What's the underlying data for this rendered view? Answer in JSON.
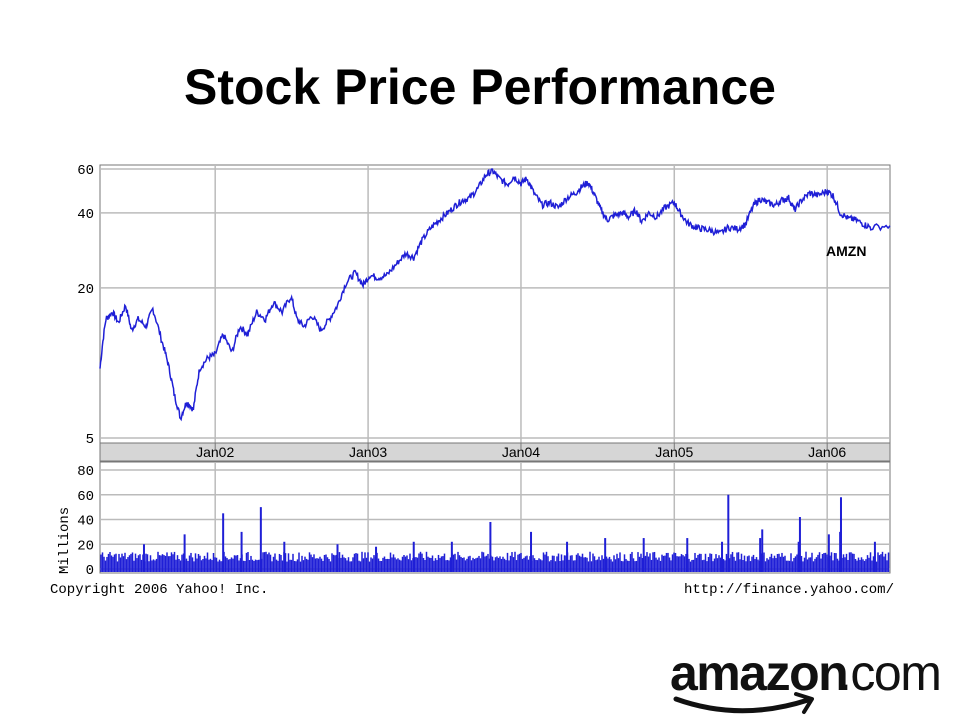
{
  "page": {
    "title": "Stock Price Performance"
  },
  "chart_data": [
    {
      "type": "line",
      "ticker_label": "AMZN",
      "y_scale": "log",
      "ylim": [
        5,
        60
      ],
      "y_ticks": [
        5,
        20,
        40,
        60
      ],
      "x_range": [
        "2001-04-01",
        "2006-05-31"
      ],
      "x_ticks": [
        {
          "date": "2002-01-01",
          "label": "Jan02"
        },
        {
          "date": "2003-01-01",
          "label": "Jan03"
        },
        {
          "date": "2004-01-01",
          "label": "Jan04"
        },
        {
          "date": "2005-01-01",
          "label": "Jan05"
        },
        {
          "date": "2006-01-01",
          "label": "Jan06"
        }
      ],
      "grid": true,
      "series": [
        {
          "color": "#1f1fd6",
          "points": [
            [
              "2001-04-01",
              9.5
            ],
            [
              "2001-04-15",
              15.0
            ],
            [
              "2001-05-01",
              16.0
            ],
            [
              "2001-05-15",
              14.5
            ],
            [
              "2001-06-01",
              17.0
            ],
            [
              "2001-06-15",
              13.5
            ],
            [
              "2001-07-01",
              15.0
            ],
            [
              "2001-07-20",
              14.0
            ],
            [
              "2001-08-05",
              16.5
            ],
            [
              "2001-08-25",
              12.5
            ],
            [
              "2001-09-10",
              10.0
            ],
            [
              "2001-09-25",
              7.5
            ],
            [
              "2001-10-10",
              6.0
            ],
            [
              "2001-10-25",
              7.0
            ],
            [
              "2001-11-10",
              6.5
            ],
            [
              "2001-11-25",
              9.5
            ],
            [
              "2001-12-15",
              10.5
            ],
            [
              "2002-01-01",
              10.8
            ],
            [
              "2002-01-20",
              13.0
            ],
            [
              "2002-02-10",
              11.0
            ],
            [
              "2002-03-01",
              14.0
            ],
            [
              "2002-03-20",
              13.0
            ],
            [
              "2002-04-10",
              16.0
            ],
            [
              "2002-05-01",
              15.0
            ],
            [
              "2002-05-20",
              17.5
            ],
            [
              "2002-06-10",
              16.0
            ],
            [
              "2002-07-01",
              18.5
            ],
            [
              "2002-07-15",
              15.0
            ],
            [
              "2002-08-01",
              14.0
            ],
            [
              "2002-08-20",
              15.5
            ],
            [
              "2002-09-10",
              13.5
            ],
            [
              "2002-10-01",
              15.0
            ],
            [
              "2002-10-20",
              17.0
            ],
            [
              "2002-11-10",
              21.0
            ],
            [
              "2002-12-01",
              23.0
            ],
            [
              "2002-12-20",
              20.5
            ],
            [
              "2003-01-05",
              22.5
            ],
            [
              "2003-01-25",
              22.0
            ],
            [
              "2003-02-15",
              22.5
            ],
            [
              "2003-03-10",
              25.0
            ],
            [
              "2003-04-01",
              27.5
            ],
            [
              "2003-04-20",
              26.5
            ],
            [
              "2003-05-10",
              31.0
            ],
            [
              "2003-06-01",
              35.0
            ],
            [
              "2003-06-20",
              37.5
            ],
            [
              "2003-07-10",
              40.0
            ],
            [
              "2003-07-30",
              43.0
            ],
            [
              "2003-08-15",
              45.0
            ],
            [
              "2003-09-01",
              46.0
            ],
            [
              "2003-09-20",
              50.0
            ],
            [
              "2003-10-10",
              57.0
            ],
            [
              "2003-10-25",
              59.0
            ],
            [
              "2003-11-10",
              55.0
            ],
            [
              "2003-11-30",
              52.0
            ],
            [
              "2003-12-15",
              56.0
            ],
            [
              "2004-01-01",
              52.5
            ],
            [
              "2004-01-15",
              55.0
            ],
            [
              "2004-02-01",
              48.0
            ],
            [
              "2004-02-20",
              43.0
            ],
            [
              "2004-03-10",
              44.0
            ],
            [
              "2004-03-30",
              42.0
            ],
            [
              "2004-04-20",
              46.0
            ],
            [
              "2004-05-10",
              48.0
            ],
            [
              "2004-05-25",
              51.0
            ],
            [
              "2004-06-10",
              53.0
            ],
            [
              "2004-06-25",
              47.0
            ],
            [
              "2004-07-10",
              41.0
            ],
            [
              "2004-07-25",
              37.5
            ],
            [
              "2004-08-10",
              39.0
            ],
            [
              "2004-08-30",
              40.0
            ],
            [
              "2004-09-15",
              38.5
            ],
            [
              "2004-10-01",
              41.0
            ],
            [
              "2004-10-15",
              37.0
            ],
            [
              "2004-11-01",
              40.0
            ],
            [
              "2004-11-20",
              38.5
            ],
            [
              "2004-12-10",
              42.0
            ],
            [
              "2005-01-01",
              44.0
            ],
            [
              "2005-01-15",
              40.0
            ],
            [
              "2005-02-01",
              36.5
            ],
            [
              "2005-02-20",
              35.0
            ],
            [
              "2005-03-10",
              34.5
            ],
            [
              "2005-03-30",
              34.0
            ],
            [
              "2005-04-20",
              33.0
            ],
            [
              "2005-05-10",
              35.0
            ],
            [
              "2005-06-01",
              34.5
            ],
            [
              "2005-06-20",
              36.0
            ],
            [
              "2005-07-10",
              43.0
            ],
            [
              "2005-07-25",
              45.5
            ],
            [
              "2005-08-10",
              44.0
            ],
            [
              "2005-08-30",
              43.0
            ],
            [
              "2005-09-15",
              45.0
            ],
            [
              "2005-10-01",
              46.0
            ],
            [
              "2005-10-15",
              41.0
            ],
            [
              "2005-11-01",
              45.0
            ],
            [
              "2005-11-20",
              48.0
            ],
            [
              "2005-12-10",
              47.0
            ],
            [
              "2006-01-01",
              49.0
            ],
            [
              "2006-01-15",
              47.0
            ],
            [
              "2006-02-01",
              40.0
            ],
            [
              "2006-02-20",
              38.0
            ],
            [
              "2006-03-10",
              37.5
            ],
            [
              "2006-03-30",
              36.0
            ],
            [
              "2006-04-15",
              35.0
            ],
            [
              "2006-05-31",
              35.5
            ]
          ]
        }
      ]
    },
    {
      "type": "bar",
      "ylabel": "Millions",
      "ylim": [
        0,
        80
      ],
      "y_ticks": [
        0,
        20,
        40,
        60,
        80
      ],
      "x_range": [
        "2001-04-01",
        "2006-05-31"
      ],
      "baseline_volume": [
        6,
        14
      ],
      "color": "#1f1fd6",
      "spikes": [
        [
          "2001-07-15",
          20
        ],
        [
          "2001-10-20",
          28
        ],
        [
          "2002-01-20",
          45
        ],
        [
          "2002-03-05",
          30
        ],
        [
          "2002-04-20",
          50
        ],
        [
          "2002-06-15",
          22
        ],
        [
          "2002-10-20",
          20
        ],
        [
          "2003-01-20",
          18
        ],
        [
          "2003-04-20",
          22
        ],
        [
          "2003-07-20",
          22
        ],
        [
          "2003-10-20",
          38
        ],
        [
          "2004-01-25",
          30
        ],
        [
          "2004-04-20",
          22
        ],
        [
          "2004-07-20",
          25
        ],
        [
          "2004-10-20",
          25
        ],
        [
          "2005-02-01",
          25
        ],
        [
          "2005-04-25",
          22
        ],
        [
          "2005-07-25",
          25
        ],
        [
          "2005-10-25",
          22
        ],
        [
          "2006-02-01",
          30
        ],
        [
          "2006-04-25",
          22
        ],
        [
          "2005-05-10",
          60
        ],
        [
          "2005-07-30",
          32
        ],
        [
          "2005-10-28",
          42
        ],
        [
          "2006-02-03",
          58
        ],
        [
          "2006-01-05",
          28
        ]
      ]
    }
  ],
  "footer": {
    "copyright": "Copyright 2006 Yahoo! Inc.",
    "url": "http://finance.yahoo.com/"
  },
  "logo": {
    "word": "amazon",
    "suffix": ".com"
  }
}
